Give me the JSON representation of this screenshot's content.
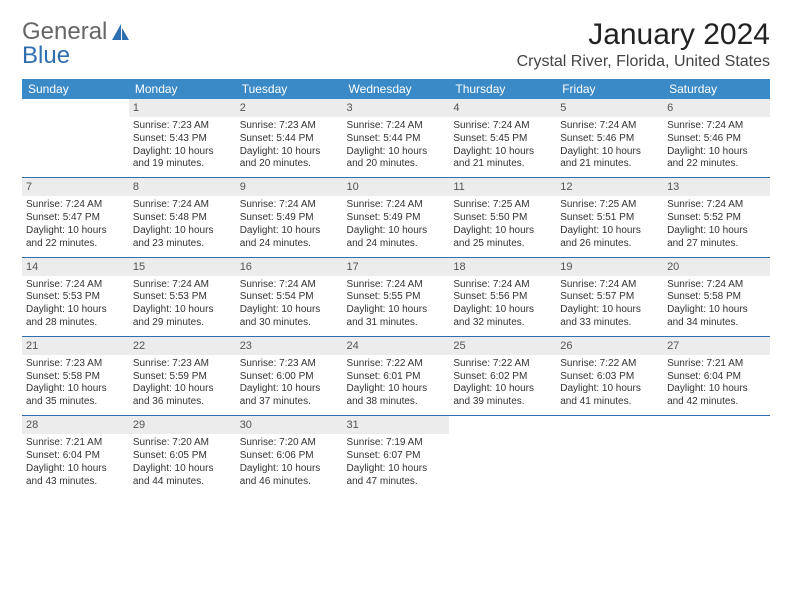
{
  "brand": {
    "part1": "General",
    "part2": "Blue"
  },
  "title": "January 2024",
  "location": "Crystal River, Florida, United States",
  "colors": {
    "header_bg": "#3a8ac8",
    "header_text": "#ffffff",
    "rule": "#2f6fb0",
    "daynum_bg": "#ececec",
    "logo_blue": "#2f6fb0",
    "logo_gray": "#666666"
  },
  "weekdays": [
    "Sunday",
    "Monday",
    "Tuesday",
    "Wednesday",
    "Thursday",
    "Friday",
    "Saturday"
  ],
  "start_weekday": 1,
  "days": [
    {
      "n": 1,
      "sunrise": "7:23 AM",
      "sunset": "5:43 PM",
      "daylight": "10 hours and 19 minutes."
    },
    {
      "n": 2,
      "sunrise": "7:23 AM",
      "sunset": "5:44 PM",
      "daylight": "10 hours and 20 minutes."
    },
    {
      "n": 3,
      "sunrise": "7:24 AM",
      "sunset": "5:44 PM",
      "daylight": "10 hours and 20 minutes."
    },
    {
      "n": 4,
      "sunrise": "7:24 AM",
      "sunset": "5:45 PM",
      "daylight": "10 hours and 21 minutes."
    },
    {
      "n": 5,
      "sunrise": "7:24 AM",
      "sunset": "5:46 PM",
      "daylight": "10 hours and 21 minutes."
    },
    {
      "n": 6,
      "sunrise": "7:24 AM",
      "sunset": "5:46 PM",
      "daylight": "10 hours and 22 minutes."
    },
    {
      "n": 7,
      "sunrise": "7:24 AM",
      "sunset": "5:47 PM",
      "daylight": "10 hours and 22 minutes."
    },
    {
      "n": 8,
      "sunrise": "7:24 AM",
      "sunset": "5:48 PM",
      "daylight": "10 hours and 23 minutes."
    },
    {
      "n": 9,
      "sunrise": "7:24 AM",
      "sunset": "5:49 PM",
      "daylight": "10 hours and 24 minutes."
    },
    {
      "n": 10,
      "sunrise": "7:24 AM",
      "sunset": "5:49 PM",
      "daylight": "10 hours and 24 minutes."
    },
    {
      "n": 11,
      "sunrise": "7:25 AM",
      "sunset": "5:50 PM",
      "daylight": "10 hours and 25 minutes."
    },
    {
      "n": 12,
      "sunrise": "7:25 AM",
      "sunset": "5:51 PM",
      "daylight": "10 hours and 26 minutes."
    },
    {
      "n": 13,
      "sunrise": "7:24 AM",
      "sunset": "5:52 PM",
      "daylight": "10 hours and 27 minutes."
    },
    {
      "n": 14,
      "sunrise": "7:24 AM",
      "sunset": "5:53 PM",
      "daylight": "10 hours and 28 minutes."
    },
    {
      "n": 15,
      "sunrise": "7:24 AM",
      "sunset": "5:53 PM",
      "daylight": "10 hours and 29 minutes."
    },
    {
      "n": 16,
      "sunrise": "7:24 AM",
      "sunset": "5:54 PM",
      "daylight": "10 hours and 30 minutes."
    },
    {
      "n": 17,
      "sunrise": "7:24 AM",
      "sunset": "5:55 PM",
      "daylight": "10 hours and 31 minutes."
    },
    {
      "n": 18,
      "sunrise": "7:24 AM",
      "sunset": "5:56 PM",
      "daylight": "10 hours and 32 minutes."
    },
    {
      "n": 19,
      "sunrise": "7:24 AM",
      "sunset": "5:57 PM",
      "daylight": "10 hours and 33 minutes."
    },
    {
      "n": 20,
      "sunrise": "7:24 AM",
      "sunset": "5:58 PM",
      "daylight": "10 hours and 34 minutes."
    },
    {
      "n": 21,
      "sunrise": "7:23 AM",
      "sunset": "5:58 PM",
      "daylight": "10 hours and 35 minutes."
    },
    {
      "n": 22,
      "sunrise": "7:23 AM",
      "sunset": "5:59 PM",
      "daylight": "10 hours and 36 minutes."
    },
    {
      "n": 23,
      "sunrise": "7:23 AM",
      "sunset": "6:00 PM",
      "daylight": "10 hours and 37 minutes."
    },
    {
      "n": 24,
      "sunrise": "7:22 AM",
      "sunset": "6:01 PM",
      "daylight": "10 hours and 38 minutes."
    },
    {
      "n": 25,
      "sunrise": "7:22 AM",
      "sunset": "6:02 PM",
      "daylight": "10 hours and 39 minutes."
    },
    {
      "n": 26,
      "sunrise": "7:22 AM",
      "sunset": "6:03 PM",
      "daylight": "10 hours and 41 minutes."
    },
    {
      "n": 27,
      "sunrise": "7:21 AM",
      "sunset": "6:04 PM",
      "daylight": "10 hours and 42 minutes."
    },
    {
      "n": 28,
      "sunrise": "7:21 AM",
      "sunset": "6:04 PM",
      "daylight": "10 hours and 43 minutes."
    },
    {
      "n": 29,
      "sunrise": "7:20 AM",
      "sunset": "6:05 PM",
      "daylight": "10 hours and 44 minutes."
    },
    {
      "n": 30,
      "sunrise": "7:20 AM",
      "sunset": "6:06 PM",
      "daylight": "10 hours and 46 minutes."
    },
    {
      "n": 31,
      "sunrise": "7:19 AM",
      "sunset": "6:07 PM",
      "daylight": "10 hours and 47 minutes."
    }
  ],
  "labels": {
    "sunrise": "Sunrise:",
    "sunset": "Sunset:",
    "daylight": "Daylight:"
  }
}
